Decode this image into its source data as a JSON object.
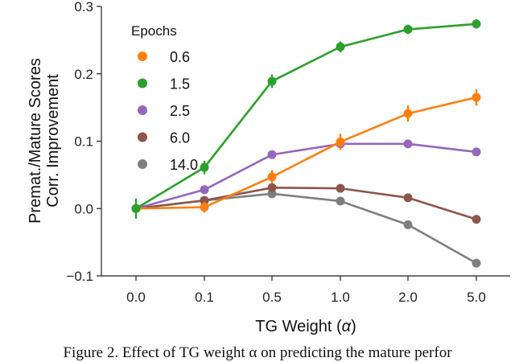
{
  "chart_data": {
    "type": "line",
    "title": "",
    "xlabel_prefix": "TG Weight (",
    "xlabel_symbol": "α",
    "xlabel_suffix": ")",
    "ylabel_line1": "Premat./Mature Scores",
    "ylabel_line2": "Corr. Improvement",
    "categories": [
      "0.0",
      "0.1",
      "0.5",
      "1.0",
      "2.0",
      "5.0"
    ],
    "ylim": [
      -0.1,
      0.3
    ],
    "yticks": [
      -0.1,
      0.0,
      0.1,
      0.2,
      0.3
    ],
    "ytick_labels": [
      "−0.1",
      "0.0",
      "0.1",
      "0.2",
      "0.3"
    ],
    "legend_title": "Epochs",
    "legend_position": "top-left",
    "grid": false,
    "series": [
      {
        "name": "0.6",
        "color": "#ff7f0e",
        "values": [
          0.0,
          0.002,
          0.047,
          0.099,
          0.141,
          0.165
        ],
        "errors": [
          0.0,
          0.008,
          0.01,
          0.012,
          0.012,
          0.012
        ]
      },
      {
        "name": "1.5",
        "color": "#2ca02c",
        "values": [
          0.0,
          0.061,
          0.189,
          0.24,
          0.266,
          0.274
        ],
        "errors": [
          0.015,
          0.01,
          0.01,
          0.008,
          0.007,
          0.007
        ]
      },
      {
        "name": "2.5",
        "color": "#9467bd",
        "values": [
          0.0,
          0.028,
          0.08,
          0.096,
          0.096,
          0.084
        ],
        "errors": [
          0.0,
          0.004,
          0.004,
          0.004,
          0.004,
          0.004
        ]
      },
      {
        "name": "6.0",
        "color": "#8c564b",
        "values": [
          0.0,
          0.012,
          0.031,
          0.03,
          0.016,
          -0.016
        ],
        "errors": [
          0.0,
          0.003,
          0.003,
          0.003,
          0.003,
          0.003
        ]
      },
      {
        "name": "14.0",
        "color": "#7f7f7f",
        "values": [
          0.0,
          0.012,
          0.022,
          0.011,
          -0.024,
          -0.081
        ],
        "errors": [
          0.0,
          0.003,
          0.003,
          0.003,
          0.003,
          0.004
        ]
      }
    ]
  },
  "caption": "Figure 2. Effect of TG weight α on predicting the mature perfor"
}
